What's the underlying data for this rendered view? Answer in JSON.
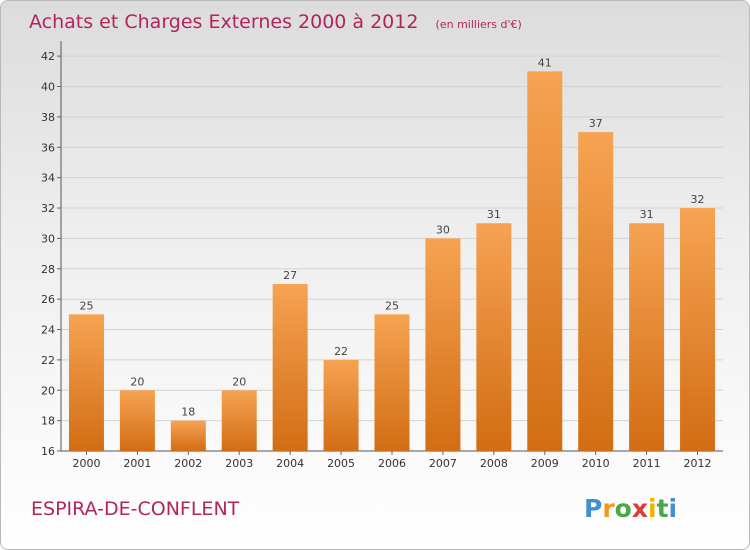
{
  "header": {
    "title": "Achats et Charges Externes 2000 à 2012",
    "unit": "(en milliers d'€)"
  },
  "footer": {
    "commune": "ESPIRA-DE-CONFLENT",
    "brand_letters": [
      "P",
      "r",
      "o",
      "x",
      "i",
      "t",
      "i"
    ]
  },
  "colors": {
    "bar_top": "#f6a352",
    "bar_bottom": "#d26d14",
    "title": "#b3245c",
    "grid": "#d2d2d2",
    "brand": [
      "#3f8fd2",
      "#f09a1d",
      "#4aa84a",
      "#e03a3a",
      "#f0b400",
      "#4aa84a",
      "#3f8fd2"
    ]
  },
  "chart_data": {
    "type": "bar",
    "title": "Achats et Charges Externes 2000 à 2012",
    "unit": "(en milliers d'€)",
    "categories": [
      "2000",
      "2001",
      "2002",
      "2003",
      "2004",
      "2005",
      "2006",
      "2007",
      "2008",
      "2009",
      "2010",
      "2011",
      "2012"
    ],
    "values": [
      25,
      20,
      18,
      20,
      27,
      22,
      25,
      30,
      31,
      41,
      37,
      31,
      32
    ],
    "value_labels": [
      "25",
      "20",
      "18",
      "20",
      "27",
      "22",
      "25",
      "30",
      "31",
      "41",
      "37",
      "31",
      "32"
    ],
    "ylim": [
      16,
      43
    ],
    "yticks": [
      16,
      18,
      20,
      22,
      24,
      26,
      28,
      30,
      32,
      34,
      36,
      38,
      40,
      42
    ],
    "ytick_labels": [
      "16",
      "18",
      "20",
      "22",
      "24",
      "26",
      "28",
      "30",
      "32",
      "34",
      "36",
      "38",
      "40",
      "42"
    ],
    "grid": true,
    "legend": "none"
  }
}
